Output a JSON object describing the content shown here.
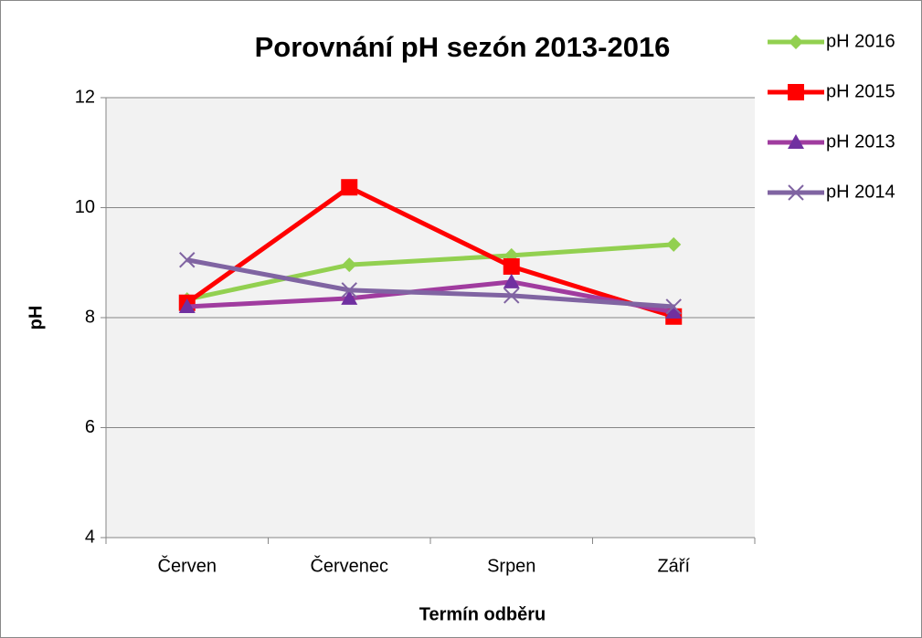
{
  "chart_data": {
    "type": "line",
    "title": "Porovnání pH sezón 2013-2016",
    "x_label": "Termín odběru",
    "y_label": "pH",
    "categories": [
      "Červen",
      "Červenec",
      "Srpen",
      "Září"
    ],
    "series": [
      {
        "name": "pH 2016",
        "color": "#92d050",
        "marker": "diamond",
        "values": [
          8.33,
          8.96,
          9.13,
          9.33
        ]
      },
      {
        "name": "pH 2015",
        "color": "#ff0000",
        "marker": "square",
        "values": [
          8.27,
          10.37,
          8.93,
          8.02
        ]
      },
      {
        "name": "pH 2013",
        "color": "#a03c9f",
        "marker": "triangle",
        "values": [
          8.2,
          8.35,
          8.65,
          8.1
        ]
      },
      {
        "name": "pH 2014",
        "color": "#8064a2",
        "marker": "x",
        "values": [
          9.05,
          8.5,
          8.4,
          8.2
        ]
      }
    ],
    "ylim": [
      4,
      12
    ],
    "yticks": [
      4,
      6,
      8,
      10,
      12
    ],
    "grid": true,
    "legend": "right"
  }
}
